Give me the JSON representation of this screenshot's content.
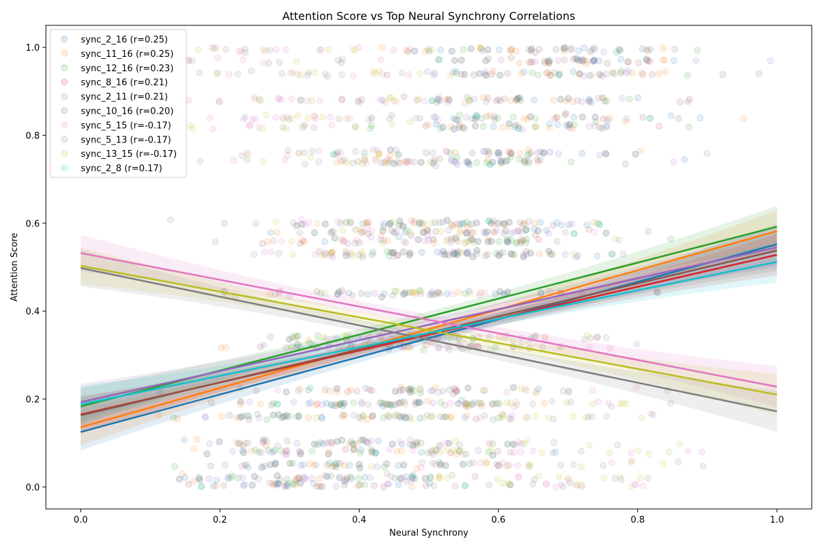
{
  "chart_data": {
    "type": "scatter",
    "title": "Attention Score vs Top Neural Synchrony Correlations",
    "xlabel": "Neural Synchrony",
    "ylabel": "Attention Score",
    "xlim": [
      -0.05,
      1.05
    ],
    "ylim": [
      -0.05,
      1.05
    ],
    "xticks": [
      "0.0",
      "0.2",
      "0.4",
      "0.6",
      "0.8",
      "1.0"
    ],
    "yticks": [
      "0.0",
      "0.2",
      "0.4",
      "0.6",
      "0.8",
      "1.0"
    ],
    "legend_position": "top-left",
    "grid": false,
    "attention_levels": [
      0.0,
      0.02,
      0.05,
      0.08,
      0.1,
      0.16,
      0.19,
      0.22,
      0.32,
      0.34,
      0.44,
      0.53,
      0.56,
      0.58,
      0.6,
      0.74,
      0.76,
      0.82,
      0.84,
      0.88,
      0.94,
      0.97,
      0.995
    ],
    "series": [
      {
        "name": "sync_2_16 (r=0.25)",
        "color": "#1f77b4",
        "fit": [
          [
            0.0,
            0.125
          ],
          [
            1.0,
            0.552
          ]
        ]
      },
      {
        "name": "sync_11_16 (r=0.25)",
        "color": "#ff7f0e",
        "fit": [
          [
            0.0,
            0.136
          ],
          [
            1.0,
            0.582
          ]
        ]
      },
      {
        "name": "sync_12_16 (r=0.23)",
        "color": "#2ca02c",
        "fit": [
          [
            0.0,
            0.183
          ],
          [
            1.0,
            0.592
          ]
        ]
      },
      {
        "name": "sync_8_16 (r=0.21)",
        "color": "#d62728",
        "fit": [
          [
            0.0,
            0.165
          ],
          [
            1.0,
            0.528
          ]
        ]
      },
      {
        "name": "sync_2_11 (r=0.21)",
        "color": "#9467bd",
        "fit": [
          [
            0.0,
            0.193
          ],
          [
            1.0,
            0.545
          ]
        ]
      },
      {
        "name": "sync_10_16 (r=0.20)",
        "color": "#8c564b",
        "fit": [
          [
            0.0,
            0.163
          ],
          [
            1.0,
            0.538
          ]
        ]
      },
      {
        "name": "sync_5_15 (r=-0.17)",
        "color": "#e377c2",
        "fit": [
          [
            0.0,
            0.532
          ],
          [
            1.0,
            0.228
          ]
        ]
      },
      {
        "name": "sync_5_13 (r=-0.17)",
        "color": "#7f7f7f",
        "fit": [
          [
            0.0,
            0.498
          ],
          [
            1.0,
            0.172
          ]
        ]
      },
      {
        "name": "sync_13_15 (r=-0.17)",
        "color": "#bcbd22",
        "fit": [
          [
            0.0,
            0.503
          ],
          [
            1.0,
            0.21
          ]
        ]
      },
      {
        "name": "sync_2_8 (r=0.17)",
        "color": "#17becf",
        "fit": [
          [
            0.0,
            0.188
          ],
          [
            1.0,
            0.512
          ]
        ]
      }
    ]
  }
}
